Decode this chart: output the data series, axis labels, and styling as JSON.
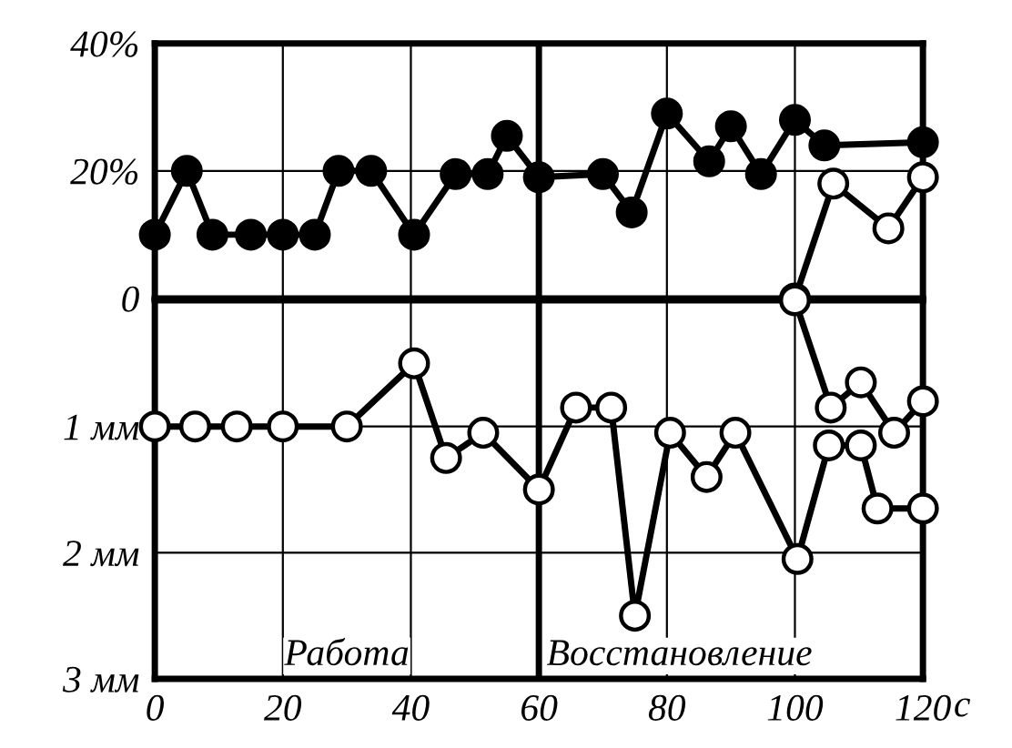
{
  "chart_data": [
    {
      "type": "line",
      "xlim": [
        0,
        120
      ],
      "xticks": [
        0,
        20,
        40,
        60,
        80,
        100,
        120
      ],
      "ylim": [
        0,
        40
      ],
      "yticks": [
        {
          "value": 0,
          "label": "0"
        },
        {
          "value": 20,
          "label": "20%"
        },
        {
          "value": 40,
          "label": "40%"
        }
      ],
      "grid": true,
      "tick_labels": "y",
      "legend": false,
      "marker": "circle",
      "line_style": "solid",
      "ref_lines": [
        {
          "axis": "x",
          "value": 60,
          "color": "#000000"
        }
      ],
      "series": [
        {
          "color": "#000000",
          "x": [
            0,
            5,
            9,
            15,
            20,
            25,
            28.7,
            33.8,
            40.5,
            47,
            52,
            55,
            60,
            70,
            74.5,
            80,
            86.6,
            90,
            94.7,
            100,
            104.6,
            120
          ],
          "values": [
            10,
            20,
            10,
            10,
            10,
            10,
            20,
            20,
            10,
            19.5,
            19.5,
            25.5,
            19,
            19.5,
            13.5,
            29,
            21.5,
            27,
            19.5,
            28,
            24,
            24.5
          ]
        },
        {
          "color": "#ffffff",
          "x": [
            100,
            106,
            114.6,
            120
          ],
          "values": [
            0,
            18,
            11,
            19
          ]
        }
      ]
    },
    {
      "type": "line",
      "xlim": [
        0,
        120
      ],
      "xticks": [
        0,
        20,
        40,
        60,
        80,
        100,
        120
      ],
      "xlabel": "с",
      "ylim": [
        3,
        0
      ],
      "yticks": [
        {
          "value": 1,
          "label": "1 мм"
        },
        {
          "value": 2,
          "label": "2 мм"
        },
        {
          "value": 3,
          "label": "3 мм"
        }
      ],
      "grid": true,
      "legend": false,
      "marker": "circle",
      "line_style": "solid",
      "ref_lines": [
        {
          "axis": "x",
          "value": 60,
          "color": "#000000"
        }
      ],
      "annotations": [
        "Работа",
        "Восстановление"
      ],
      "series": [
        {
          "color": "#ffffff",
          "x": [
            0,
            6.3,
            12.8,
            20,
            30,
            40.5,
            45.5,
            51.3,
            60,
            65.8,
            71.3,
            75,
            80.5,
            86.2,
            90.7,
            100.4,
            105.3,
            110.3,
            112.9,
            120
          ],
          "values": [
            1.0,
            1.0,
            1.0,
            1.0,
            1.0,
            0.5,
            1.25,
            1.05,
            1.5,
            0.85,
            0.85,
            2.5,
            1.05,
            1.4,
            1.05,
            2.05,
            1.15,
            1.15,
            1.65,
            1.65
          ]
        },
        {
          "color": "#ffffff",
          "x": [
            100,
            105.6,
            110.3,
            115.5,
            120
          ],
          "values": [
            0,
            0.85,
            0.65,
            1.05,
            0.8
          ]
        }
      ]
    }
  ]
}
